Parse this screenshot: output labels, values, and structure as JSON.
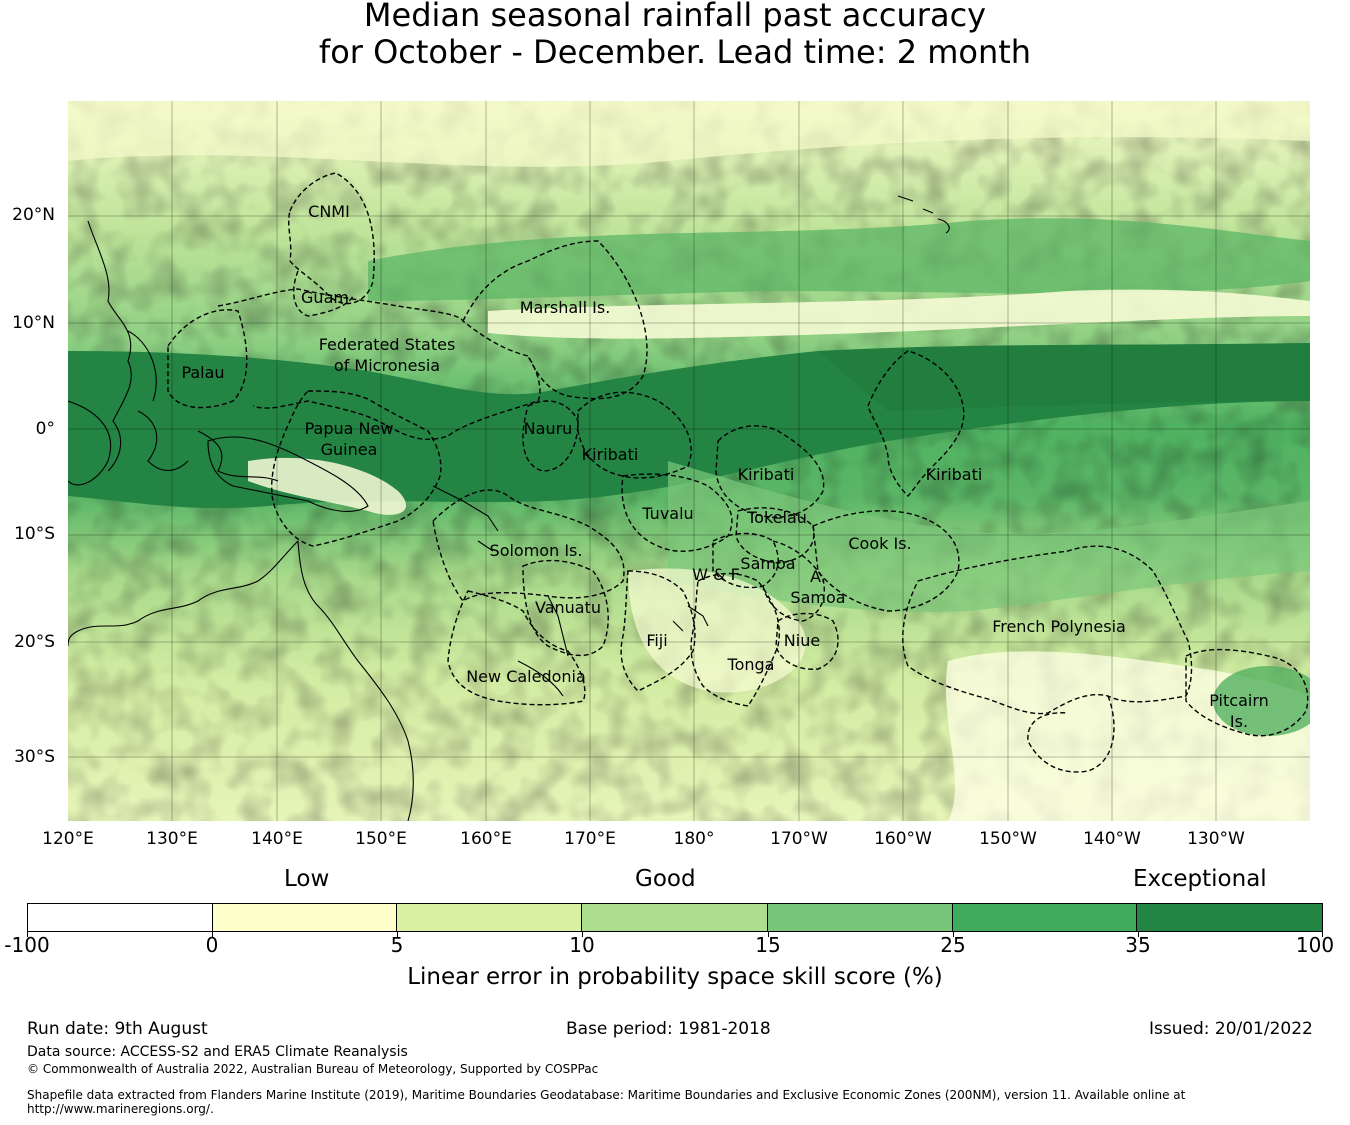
{
  "title": {
    "line1": "Median seasonal rainfall past accuracy",
    "line2": "for October - December. Lead time: 2 month"
  },
  "map": {
    "lat_labels": [
      "20°N",
      "10°N",
      "0°",
      "10°S",
      "20°S",
      "30°S"
    ],
    "lon_labels": [
      "120°E",
      "130°E",
      "140°E",
      "150°E",
      "160°E",
      "170°E",
      "180°",
      "170°W",
      "160°W",
      "150°W",
      "140°W",
      "130°W"
    ],
    "region_labels": {
      "cnmi": "CNMI",
      "guam": "Guam",
      "marshall": "Marshall Is.",
      "fsm_line1": "Federated States",
      "fsm_line2": "of Micronesia",
      "palau": "Palau",
      "png_line1": "Papua New",
      "png_line2": "Guinea",
      "nauru": "Nauru",
      "kiribati_west": "Kiribati",
      "kiribati_central": "Kiribati",
      "kiribati_east": "Kiribati",
      "tuvalu": "Tuvalu",
      "tokelau": "Tokelau",
      "cook": "Cook Is.",
      "solomon": "Solomon Is.",
      "samoa": "Samoa",
      "wf": "W & F",
      "a_samoa_line1": "A.",
      "a_samoa_line2": "Samoa",
      "vanuatu": "Vanuatu",
      "fiji": "Fiji",
      "niue": "Niue",
      "tonga": "Tonga",
      "new_caledonia": "New Caledonia",
      "french_polynesia": "French Polynesia",
      "pitcairn_line1": "Pitcairn",
      "pitcairn_line2": "Is."
    }
  },
  "colorbar": {
    "header_low": "Low",
    "header_good": "Good",
    "header_exceptional": "Exceptional",
    "ticks": [
      "-100",
      "0",
      "5",
      "10",
      "15",
      "25",
      "35",
      "100"
    ],
    "colors": [
      "#ffffff",
      "#ffffcc",
      "#d9f0a3",
      "#addd8e",
      "#78c679",
      "#41ab5d",
      "#238443"
    ],
    "label": "Linear error in probability space skill score (%)"
  },
  "footer": {
    "run_date": "Run date: 9th August",
    "base_period": "Base period: 1981-2018",
    "issued": "Issued: 20/01/2022",
    "data_source": "Data source: ACCESS-S2 and ERA5 Climate Reanalysis",
    "copyright": "© Commonwealth of Australia 2022, Australian Bureau of Meteorology, Supported by COSPPac",
    "shapefile_line1": "Shapefile data extracted from Flanders Marine Institute (2019), Maritime Boundaries Geodatabase: Maritime Boundaries and Exclusive Economic Zones (200NM), version 11. Available online at",
    "shapefile_line2": "http://www.marineregions.org/."
  }
}
